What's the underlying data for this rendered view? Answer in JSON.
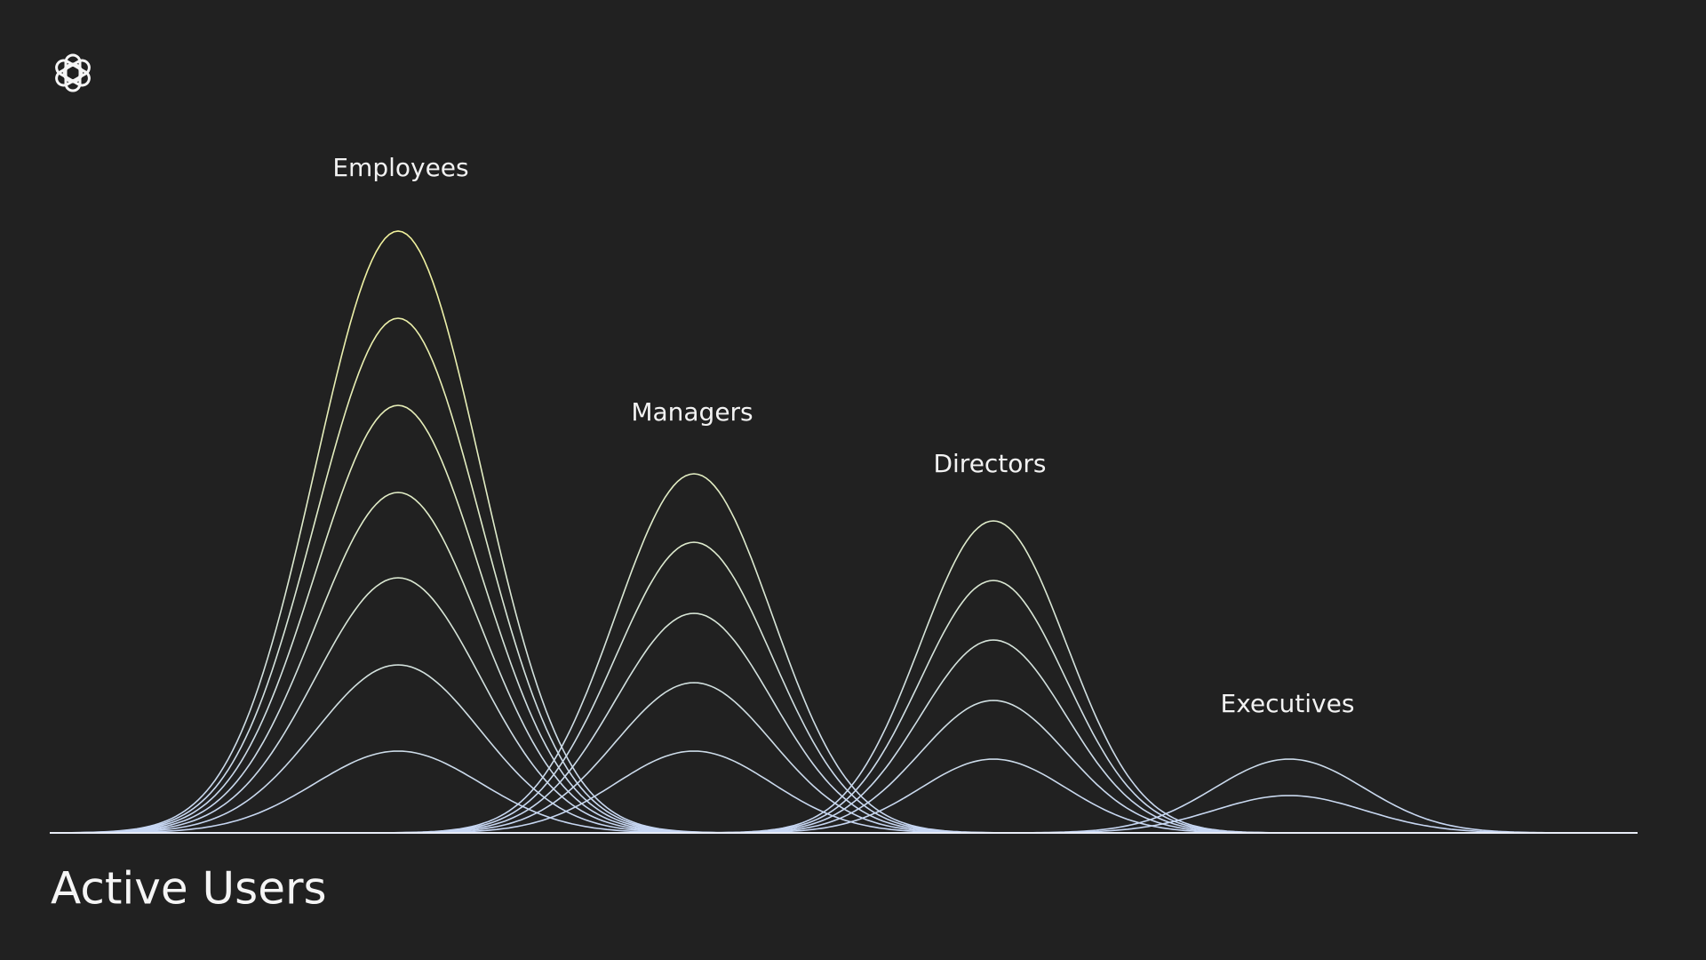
{
  "title": "Active Users",
  "labels": [
    "Employees",
    "Managers",
    "Directors",
    "Executives"
  ]
}
